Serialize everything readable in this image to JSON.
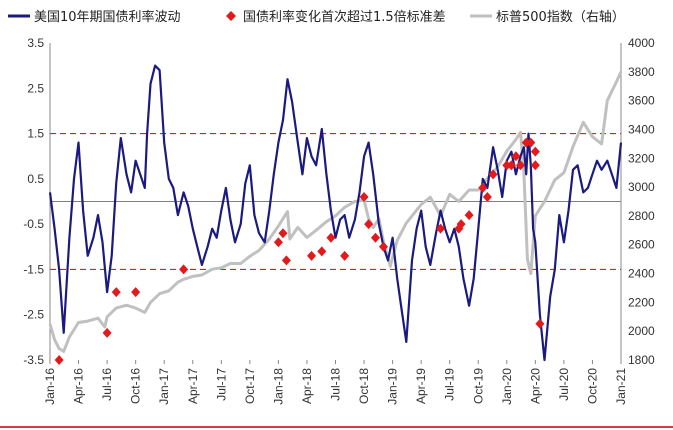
{
  "chart_data": {
    "type": "line",
    "title": "",
    "legend": [
      {
        "name": "美国10年期国债利率波动",
        "color": "#1a1a80",
        "kind": "line"
      },
      {
        "name": "国债利率变化首次超过1.5倍标准差",
        "color": "#e31a1c",
        "kind": "diamond"
      },
      {
        "name": "标普500指数（右轴）",
        "color": "#bfbfbf",
        "kind": "line"
      }
    ],
    "left_axis": {
      "ylim": [
        -3.5,
        3.5
      ],
      "ticks": [
        "3.5",
        "2.5",
        "1.5",
        "0.5",
        "-0.5",
        "-1.5",
        "-2.5",
        "-3.5"
      ],
      "tick_values": [
        3.5,
        2.5,
        1.5,
        0.5,
        -0.5,
        -1.5,
        -2.5,
        -3.5
      ]
    },
    "right_axis": {
      "ylim": [
        1800,
        4000
      ],
      "ticks": [
        "4000",
        "3800",
        "3600",
        "3400",
        "3200",
        "3000",
        "2800",
        "2600",
        "2400",
        "2200",
        "2000",
        "1800"
      ],
      "tick_values": [
        4000,
        3800,
        3600,
        3400,
        3200,
        3000,
        2800,
        2600,
        2400,
        2200,
        2000,
        1800
      ]
    },
    "x_axis": {
      "xlim": [
        2016.0,
        2021.0
      ],
      "ticks": [
        "Jan-16",
        "Apr-16",
        "Jul-16",
        "Oct-16",
        "Jan-17",
        "Apr-17",
        "Jul-17",
        "Oct-17",
        "Jan-18",
        "Apr-18",
        "Jul-18",
        "Oct-18",
        "Jan-19",
        "Apr-19",
        "Jul-19",
        "Oct-19",
        "Jan-20",
        "Apr-20",
        "Jul-20",
        "Oct-20",
        "Jan-21"
      ]
    },
    "threshold_lines": [
      1.5,
      -1.5
    ],
    "zero_line": 0.0,
    "series": [
      {
        "name": "美国10年期国债利率波动",
        "axis": "left",
        "x": [
          2016.0,
          2016.04,
          2016.08,
          2016.12,
          2016.17,
          2016.21,
          2016.25,
          2016.29,
          2016.33,
          2016.38,
          2016.42,
          2016.46,
          2016.5,
          2016.54,
          2016.58,
          2016.62,
          2016.67,
          2016.71,
          2016.75,
          2016.79,
          2016.83,
          2016.85,
          2016.88,
          2016.92,
          2016.96,
          2017.0,
          2017.04,
          2017.08,
          2017.12,
          2017.17,
          2017.21,
          2017.25,
          2017.29,
          2017.33,
          2017.38,
          2017.42,
          2017.46,
          2017.5,
          2017.54,
          2017.58,
          2017.62,
          2017.67,
          2017.71,
          2017.75,
          2017.79,
          2017.83,
          2017.88,
          2017.92,
          2017.96,
          2018.0,
          2018.04,
          2018.08,
          2018.12,
          2018.17,
          2018.21,
          2018.25,
          2018.29,
          2018.33,
          2018.38,
          2018.42,
          2018.46,
          2018.5,
          2018.54,
          2018.58,
          2018.62,
          2018.67,
          2018.71,
          2018.75,
          2018.79,
          2018.83,
          2018.88,
          2018.92,
          2018.96,
          2019.0,
          2019.04,
          2019.08,
          2019.12,
          2019.17,
          2019.21,
          2019.25,
          2019.29,
          2019.33,
          2019.38,
          2019.42,
          2019.46,
          2019.5,
          2019.54,
          2019.58,
          2019.62,
          2019.67,
          2019.71,
          2019.75,
          2019.79,
          2019.83,
          2019.88,
          2019.92,
          2019.96,
          2020.0,
          2020.04,
          2020.08,
          2020.12,
          2020.15,
          2020.17,
          2020.19,
          2020.21,
          2020.23,
          2020.25,
          2020.29,
          2020.33,
          2020.38,
          2020.42,
          2020.46,
          2020.5,
          2020.54,
          2020.58,
          2020.62,
          2020.67,
          2020.71,
          2020.75,
          2020.79,
          2020.83,
          2020.88,
          2020.92,
          2020.96,
          2021.0
        ],
        "values": [
          0.2,
          -0.6,
          -1.5,
          -2.9,
          -0.8,
          0.5,
          1.3,
          -0.2,
          -1.2,
          -0.8,
          -0.3,
          -0.9,
          -2.0,
          -1.2,
          0.4,
          1.4,
          0.6,
          0.2,
          0.9,
          0.6,
          0.3,
          1.5,
          2.6,
          3.0,
          2.9,
          1.3,
          0.5,
          0.3,
          -0.3,
          0.2,
          -0.1,
          -0.6,
          -1.0,
          -1.4,
          -1.0,
          -0.6,
          -0.8,
          -0.2,
          0.3,
          -0.4,
          -0.9,
          -0.5,
          0.4,
          0.8,
          -0.3,
          -0.7,
          -0.9,
          -0.2,
          0.6,
          1.3,
          1.8,
          2.7,
          2.2,
          1.3,
          0.6,
          1.4,
          1.0,
          0.8,
          1.6,
          0.6,
          -0.2,
          -0.8,
          -0.4,
          -0.3,
          -0.8,
          -0.4,
          0.2,
          1.0,
          1.3,
          0.6,
          -0.5,
          -1.0,
          -1.3,
          -0.8,
          -1.7,
          -2.4,
          -3.1,
          -1.3,
          -0.6,
          -0.2,
          -1.0,
          -1.4,
          -0.7,
          -0.2,
          -0.6,
          -0.9,
          -0.6,
          -1.0,
          -1.7,
          -2.3,
          -1.7,
          -0.6,
          0.5,
          0.3,
          1.2,
          0.7,
          0.1,
          0.9,
          1.1,
          0.6,
          1.0,
          1.2,
          0.6,
          1.5,
          0.8,
          -0.6,
          -0.9,
          -2.5,
          -3.5,
          -2.1,
          -1.5,
          -0.3,
          -0.9,
          -0.2,
          0.7,
          0.8,
          0.2,
          0.3,
          0.6,
          0.9,
          0.7,
          0.9,
          0.6,
          0.3,
          1.3
        ]
      },
      {
        "name": "标普500指数（右轴）",
        "axis": "right",
        "x": [
          2016.0,
          2016.04,
          2016.08,
          2016.12,
          2016.17,
          2016.21,
          2016.25,
          2016.33,
          2016.42,
          2016.48,
          2016.5,
          2016.58,
          2016.67,
          2016.75,
          2016.83,
          2016.88,
          2016.96,
          2017.04,
          2017.12,
          2017.17,
          2017.25,
          2017.33,
          2017.42,
          2017.5,
          2017.58,
          2017.67,
          2017.75,
          2017.83,
          2017.92,
          2018.0,
          2018.08,
          2018.1,
          2018.17,
          2018.25,
          2018.33,
          2018.42,
          2018.5,
          2018.58,
          2018.67,
          2018.75,
          2018.79,
          2018.83,
          2018.88,
          2018.92,
          2018.98,
          2019.04,
          2019.12,
          2019.25,
          2019.33,
          2019.42,
          2019.5,
          2019.58,
          2019.67,
          2019.75,
          2019.83,
          2019.92,
          2020.0,
          2020.08,
          2020.12,
          2020.15,
          2020.18,
          2020.21,
          2020.25,
          2020.33,
          2020.42,
          2020.5,
          2020.58,
          2020.67,
          2020.75,
          2020.83,
          2020.88,
          2020.96,
          2021.0
        ],
        "values": [
          2050,
          1940,
          1880,
          1860,
          1960,
          2010,
          2060,
          2070,
          2090,
          2030,
          2100,
          2160,
          2180,
          2160,
          2130,
          2200,
          2260,
          2280,
          2340,
          2360,
          2380,
          2390,
          2430,
          2440,
          2470,
          2470,
          2520,
          2560,
          2640,
          2730,
          2830,
          2640,
          2720,
          2650,
          2700,
          2760,
          2800,
          2860,
          2900,
          2910,
          2780,
          2720,
          2780,
          2620,
          2450,
          2630,
          2750,
          2880,
          2930,
          2800,
          2950,
          2900,
          2980,
          2980,
          3060,
          3140,
          3250,
          3330,
          3380,
          3100,
          2500,
          2400,
          2800,
          2900,
          3050,
          3100,
          3280,
          3450,
          3350,
          3300,
          3600,
          3730,
          3800
        ]
      }
    ],
    "events": {
      "name": "国债利率变化首次超过1.5倍标准差",
      "x": [
        2016.08,
        2016.5,
        2016.58,
        2016.75,
        2017.17,
        2018.0,
        2018.04,
        2018.07,
        2018.29,
        2018.38,
        2018.46,
        2018.58,
        2018.75,
        2018.79,
        2018.85,
        2018.92,
        2019.42,
        2019.58,
        2019.6,
        2019.67,
        2019.79,
        2019.83,
        2019.88,
        2020.0,
        2020.04,
        2020.08,
        2020.12,
        2020.17,
        2020.21,
        2020.25,
        2020.25,
        2020.29
      ],
      "values": [
        -3.5,
        -2.9,
        -2.0,
        -2.0,
        -1.5,
        -0.9,
        -0.7,
        -1.3,
        -1.2,
        -1.1,
        -0.8,
        -1.2,
        0.1,
        -0.5,
        -0.8,
        -1.0,
        -0.6,
        -0.6,
        -0.5,
        -0.3,
        0.3,
        0.1,
        0.6,
        0.8,
        0.8,
        1.0,
        0.8,
        1.3,
        1.3,
        1.1,
        0.8,
        -2.7
      ]
    }
  }
}
